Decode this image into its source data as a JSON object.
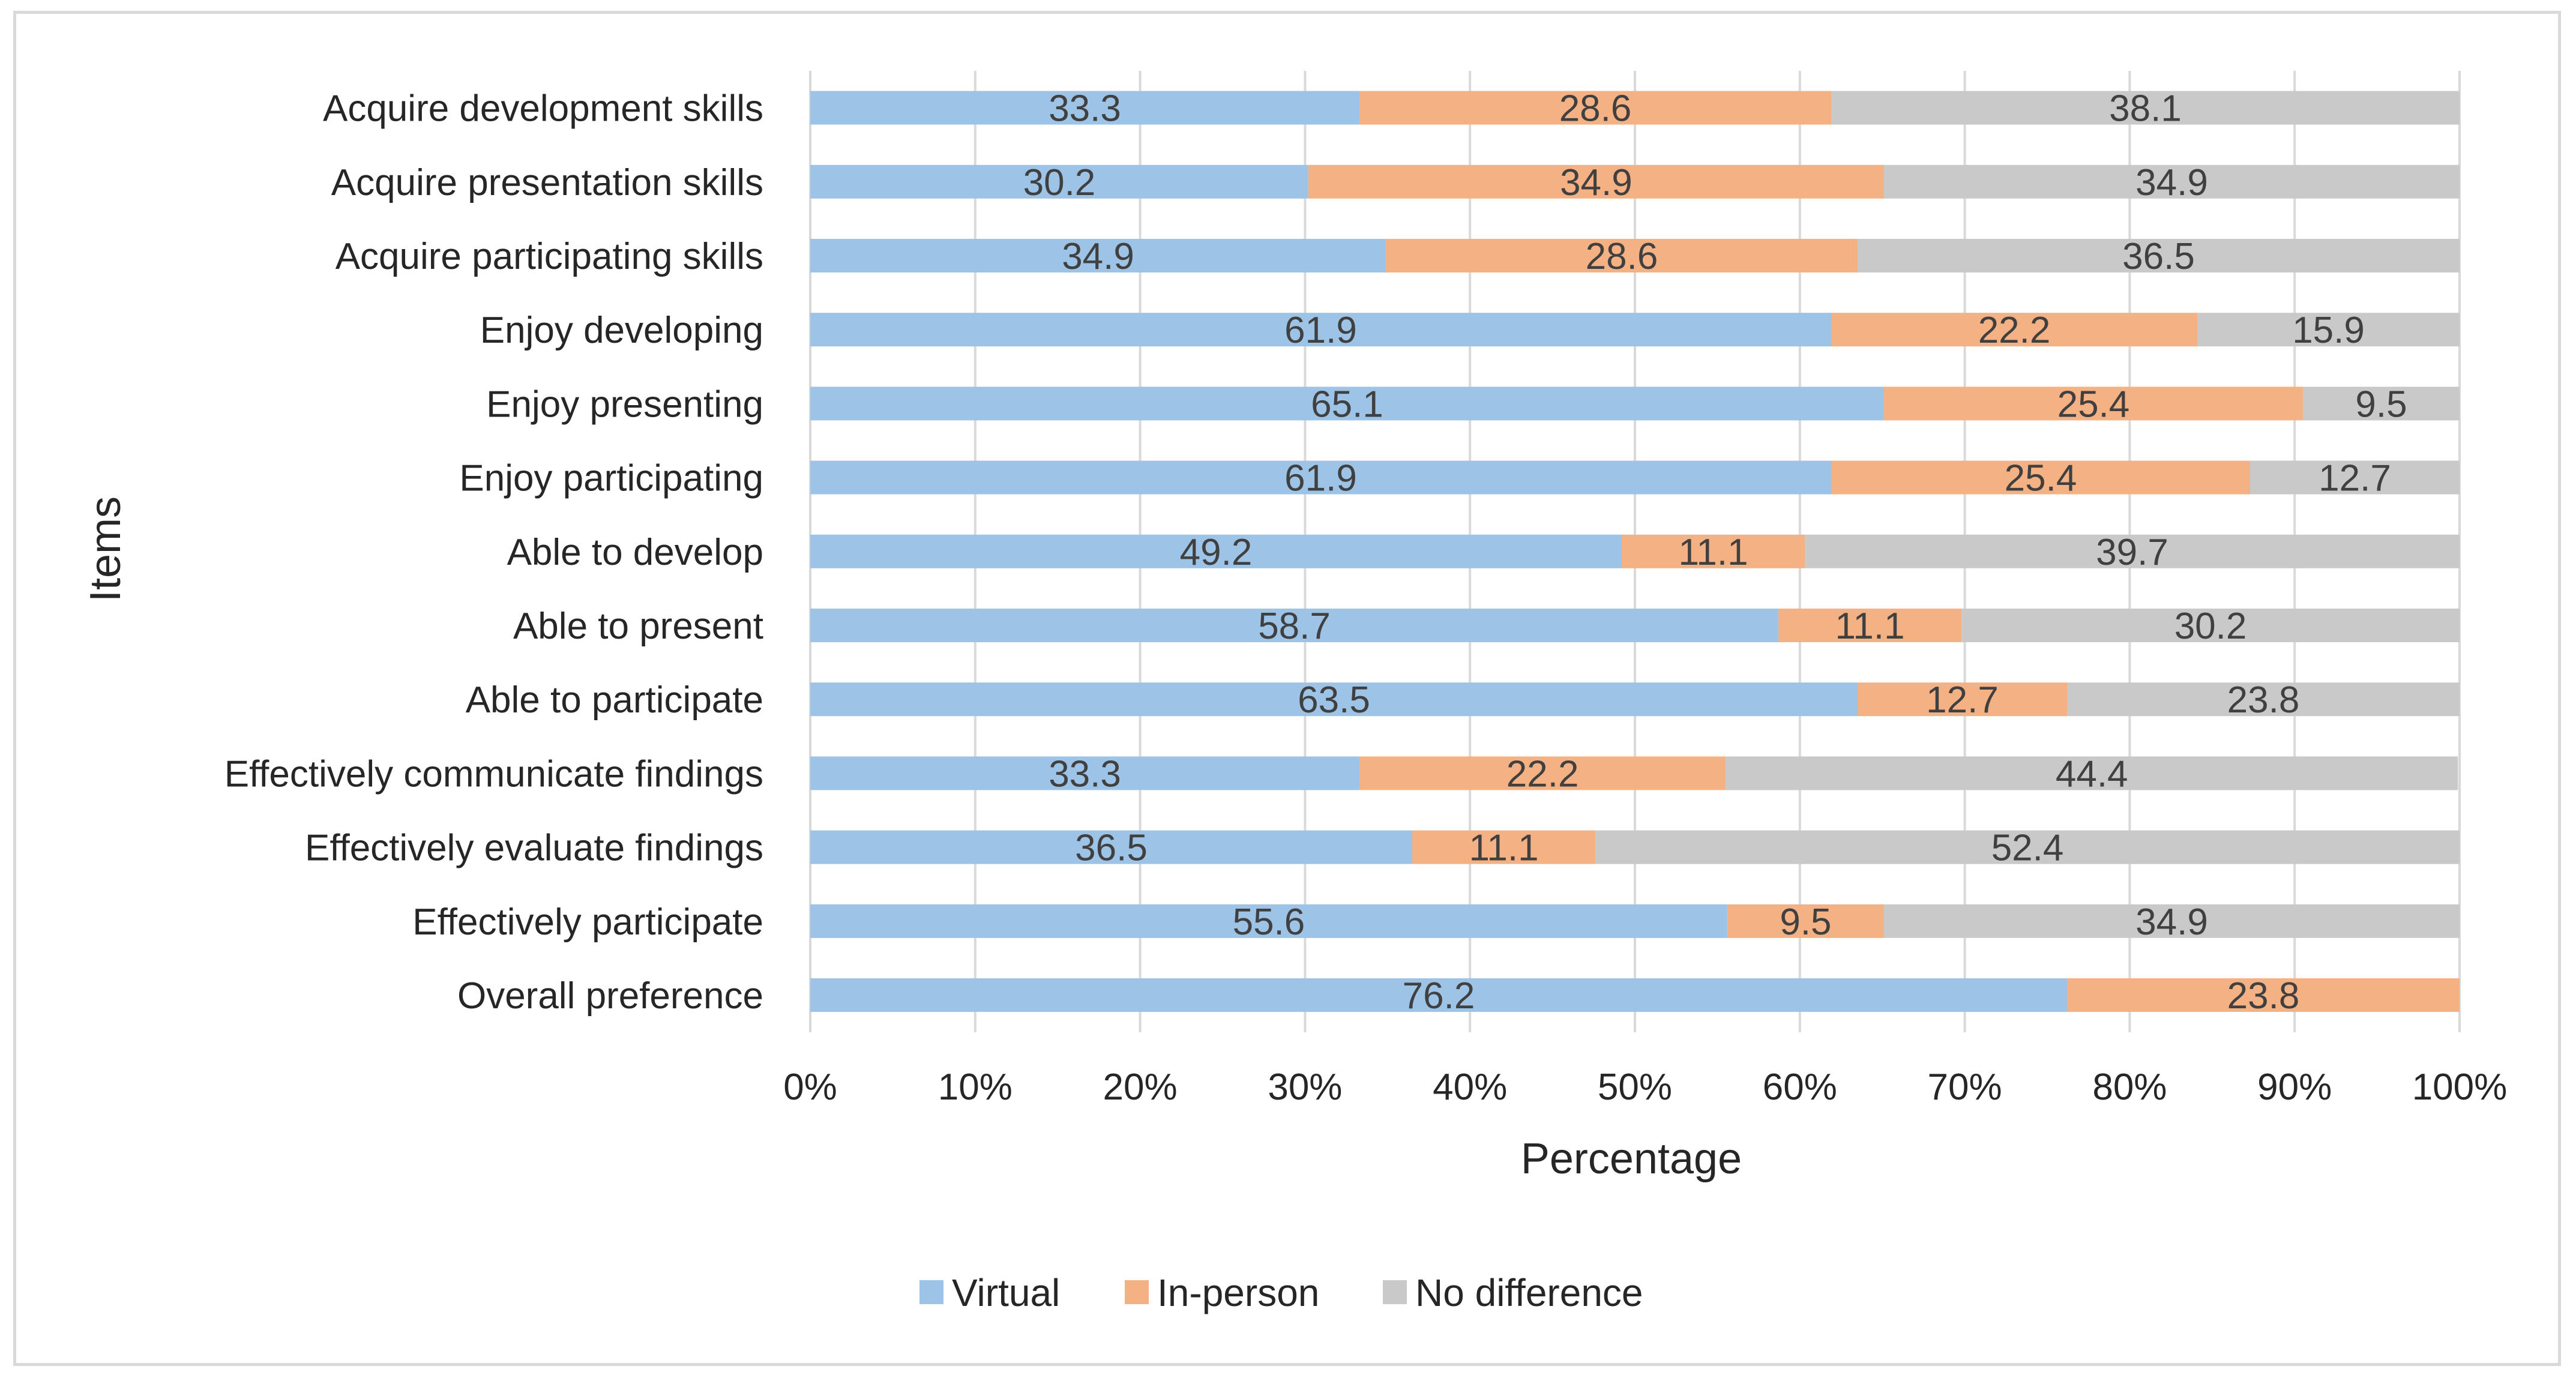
{
  "chart_data": {
    "type": "bar",
    "orientation": "horizontal",
    "stacked": "percent",
    "title": "",
    "xlabel": "Percentage",
    "ylabel": "Items",
    "xlim": [
      0,
      100
    ],
    "x_ticks": [
      "0%",
      "10%",
      "20%",
      "30%",
      "40%",
      "50%",
      "60%",
      "70%",
      "80%",
      "90%",
      "100%"
    ],
    "grid": "vertical",
    "legend_position": "bottom",
    "categories": [
      "Acquire development skills",
      "Acquire presentation skills",
      "Acquire participating skills",
      "Enjoy developing",
      "Enjoy presenting",
      "Enjoy participating",
      "Able to develop",
      "Able to present",
      "Able to participate",
      "Effectively communicate findings",
      "Effectively evaluate findings",
      "Effectively participate",
      "Overall preference"
    ],
    "series": [
      {
        "name": "Virtual",
        "color": "#9dc3e6",
        "values": [
          33.3,
          30.2,
          34.9,
          61.9,
          65.1,
          61.9,
          49.2,
          58.7,
          63.5,
          33.3,
          36.5,
          55.6,
          76.2
        ]
      },
      {
        "name": "In-person",
        "color": "#f4b183",
        "values": [
          28.6,
          34.9,
          28.6,
          22.2,
          25.4,
          25.4,
          11.1,
          11.1,
          12.7,
          22.2,
          11.1,
          9.5,
          23.8
        ]
      },
      {
        "name": "No difference",
        "color": "#c9c9c9",
        "values": [
          38.1,
          34.9,
          36.5,
          15.9,
          9.5,
          12.7,
          39.7,
          30.2,
          23.8,
          44.4,
          52.4,
          34.9,
          0
        ]
      }
    ]
  }
}
